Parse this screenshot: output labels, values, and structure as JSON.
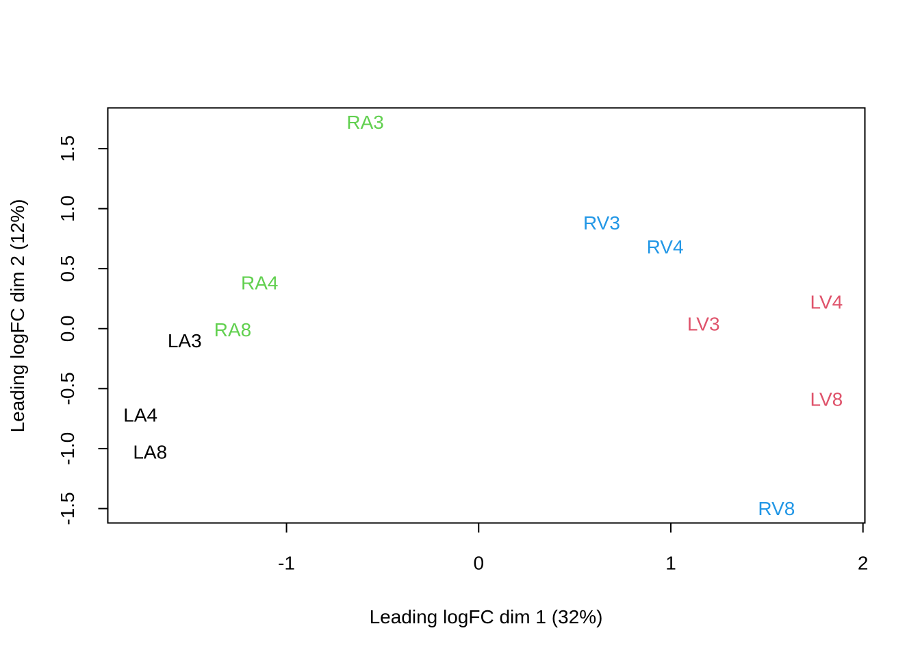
{
  "chart_data": {
    "type": "scatter",
    "title": "",
    "xlabel": "Leading logFC dim 1 (32%)",
    "ylabel": "Leading logFC dim 2 (12%)",
    "xlim": [
      -1.93,
      2.01
    ],
    "ylim": [
      -1.62,
      1.84
    ],
    "x_ticks": [
      -1,
      0,
      1,
      2
    ],
    "x_tick_labels": [
      "-1",
      "0",
      "1",
      "2"
    ],
    "y_ticks": [
      -1.5,
      -1.0,
      -0.5,
      0.0,
      0.5,
      1.0,
      1.5
    ],
    "y_tick_labels": [
      "-1.5",
      "-1.0",
      "-0.5",
      "0.0",
      "0.5",
      "1.0",
      "1.5"
    ],
    "grid": false,
    "legend": "none",
    "groups": {
      "LA": "#000000",
      "RA": "#61D04F",
      "RV": "#2297E6",
      "LV": "#DF536B"
    },
    "points": [
      {
        "label": "LA3",
        "group": "LA",
        "x": -1.53,
        "y": -0.1
      },
      {
        "label": "LA4",
        "group": "LA",
        "x": -1.76,
        "y": -0.72
      },
      {
        "label": "LA8",
        "group": "LA",
        "x": -1.71,
        "y": -1.03
      },
      {
        "label": "RA3",
        "group": "RA",
        "x": -0.59,
        "y": 1.72
      },
      {
        "label": "RA4",
        "group": "RA",
        "x": -1.14,
        "y": 0.38
      },
      {
        "label": "RA8",
        "group": "RA",
        "x": -1.28,
        "y": -0.01
      },
      {
        "label": "RV3",
        "group": "RV",
        "x": 0.64,
        "y": 0.88
      },
      {
        "label": "RV4",
        "group": "RV",
        "x": 0.97,
        "y": 0.68
      },
      {
        "label": "RV8",
        "group": "RV",
        "x": 1.55,
        "y": -1.5
      },
      {
        "label": "LV3",
        "group": "LV",
        "x": 1.17,
        "y": 0.04
      },
      {
        "label": "LV4",
        "group": "LV",
        "x": 1.81,
        "y": 0.22
      },
      {
        "label": "LV8",
        "group": "LV",
        "x": 1.81,
        "y": -0.59
      }
    ]
  }
}
